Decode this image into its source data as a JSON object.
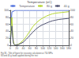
{
  "chart_data": {
    "type": "line",
    "title": "Temperature (oC)",
    "annotations": [
      "Fig 36 - Title of figure for viscosity calculation at 750 MPa",
      "80 and 40 g loads applied during the test"
    ],
    "series": [
      {
        "name": "Temperature",
        "axis": "y2",
        "x": [
          0,
          5,
          15,
          20,
          25,
          30,
          40,
          50,
          60,
          70,
          80,
          90,
          100,
          110,
          120,
          130,
          140,
          150,
          160,
          170,
          180
        ],
        "values": [
          20,
          95,
          100,
          100,
          100,
          100,
          100,
          100,
          100,
          100,
          100,
          100,
          100,
          100,
          100,
          100,
          100,
          100,
          100,
          100,
          100
        ]
      },
      {
        "name": "80 g",
        "x": [
          0,
          3,
          5,
          7,
          9,
          11,
          13,
          15,
          20,
          25,
          30,
          40,
          50,
          60,
          70,
          80,
          90,
          100,
          110,
          120,
          130,
          140,
          150,
          160,
          170,
          180
        ],
        "values": [
          10,
          60,
          80,
          40,
          15,
          5,
          2,
          1,
          1.5,
          3,
          6,
          14,
          26,
          40,
          54,
          64,
          72,
          78,
          83,
          87,
          90,
          92,
          93,
          94,
          95,
          96
        ]
      },
      {
        "name": "40 g",
        "x": [
          0,
          3,
          5,
          7,
          9,
          11,
          13,
          15,
          20,
          25,
          30,
          40,
          50,
          60,
          70,
          80,
          90,
          100,
          110,
          120,
          130,
          140,
          150,
          160,
          170,
          180
        ],
        "values": [
          6,
          40,
          55,
          28,
          10,
          3,
          1.5,
          0.8,
          1,
          2,
          4,
          9,
          18,
          28,
          38,
          47,
          54,
          59,
          63,
          67,
          70,
          72,
          74,
          75,
          76,
          77
        ]
      }
    ],
    "xlim": [
      0,
      180
    ],
    "xticks": [
      0,
      20,
      40,
      60,
      80,
      100,
      120,
      140,
      160,
      180
    ],
    "ylim": [
      0,
      100
    ],
    "yticks": [
      0,
      20,
      40,
      60,
      80,
      100
    ],
    "y2lim": [
      0,
      100
    ],
    "y2ticks": [
      0,
      20,
      40,
      60,
      80,
      100
    ],
    "grid": true,
    "legend": "top"
  }
}
